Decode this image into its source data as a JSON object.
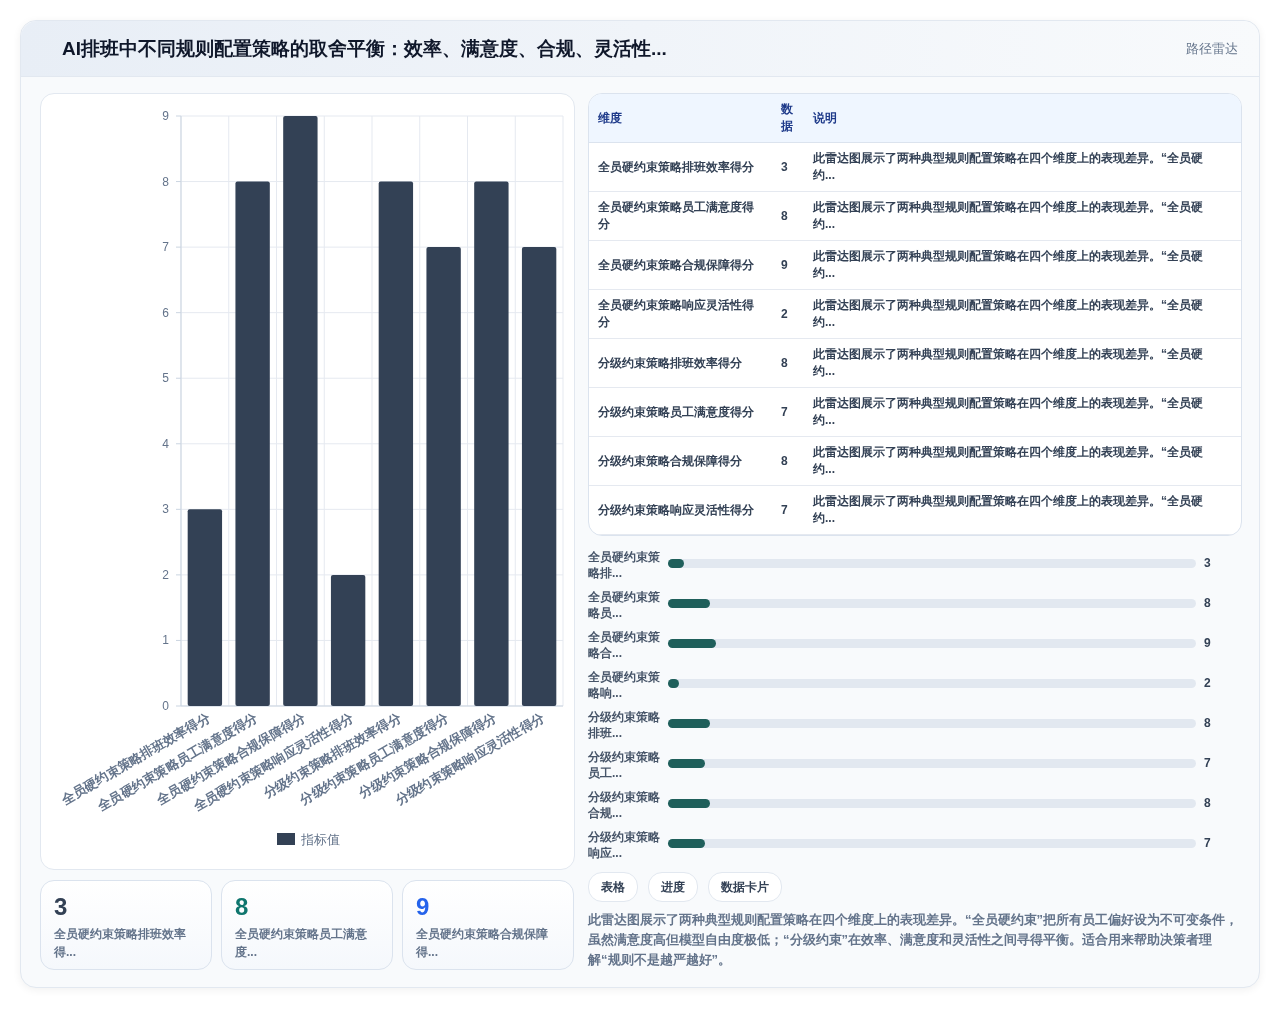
{
  "chart_data": [
    {
      "type": "other",
      "title": "AI排班中不同规则配置策略的取舍平衡：效率、满意度、合规、灵活性...",
      "subtitle": "路径雷达"
    },
    {
      "type": "bar",
      "categories": [
        "全员硬约束策略排班效率得分",
        "全员硬约束策略员工满意度得分",
        "全员硬约束策略合规保障得分",
        "全员硬约束策略响应灵活性得分",
        "分级约束策略排班效率得分",
        "分级约束策略员工满意度得分",
        "分级约束策略合规保障得分",
        "分级约束策略响应灵活性得分"
      ],
      "series": [
        {
          "name": "指标值",
          "color": "#334155",
          "values": [
            3,
            8,
            9,
            2,
            8,
            7,
            8,
            7
          ]
        }
      ],
      "ylim": [
        0,
        9
      ],
      "yticks": [
        0,
        1,
        2,
        3,
        4,
        5,
        6,
        7,
        8,
        9
      ],
      "grid": true,
      "legend": "bottom"
    },
    {
      "type": "other",
      "categories": [
        "全员硬约束策略排班效率得分",
        "全员硬约束策略员工满意度得分",
        "全员硬约束策略合规保障得分",
        "全员硬约束策略响应灵活性得分",
        "分级约束策略排班效率得分",
        "分级约束策略员工满意度得分",
        "分级约束策略合规保障得分",
        "分级约束策略响应灵活性得分"
      ],
      "values": [
        3,
        8,
        9,
        2,
        8,
        7,
        8,
        7
      ],
      "data_labels": true,
      "annotations": [
        "维度",
        "数据",
        "说明",
        "此雷达图展示了两种典型规则配置策略在四个维度上的表现差异。“全员硬约...",
        "此雷达图展示了两种典型规则配置策略在四个维度上的表现差异。“全员硬约...",
        "此雷达图展示了两种典型规则配置策略在四个维度上的表现差异。“全员硬约...",
        "此雷达图展示了两种典型规则配置策略在四个维度上的表现差异。“全员硬约...",
        "此雷达图展示了两种典型规则配置策略在四个维度上的表现差异。“全员硬约...",
        "此雷达图展示了两种典型规则配置策略在四个维度上的表现差异。“全员硬约...",
        "此雷达图展示了两种典型规则配置策略在四个维度上的表现差异。“全员硬约...",
        "此雷达图展示了两种典型规则配置策略在四个维度上的表现差异。“全员硬约..."
      ]
    },
    {
      "type": "bar",
      "orientation": "horizontal",
      "data_labels": true,
      "categories": [
        "全员硬约束策略排...",
        "全员硬约束策略员...",
        "全员硬约束策略合...",
        "全员硬约束策略响...",
        "分级约束策略排班...",
        "分级约束策略员工...",
        "分级约束策略合规...",
        "分级约束策略响应..."
      ],
      "values": [
        3,
        8,
        9,
        2,
        8,
        7,
        8,
        7
      ],
      "color": "#1f5f5b"
    },
    {
      "type": "other",
      "categories": [
        "全员硬约束策略排班效率得...",
        "全员硬约束策略员工满意度...",
        "全员硬约束策略合规保障得..."
      ],
      "values": [
        3,
        8,
        9
      ],
      "data_labels": true
    },
    {
      "type": "other",
      "annotations": [
        "表格",
        "进度",
        "数据卡片",
        "此雷达图展示了两种典型规则配置策略在四个维度上的表现差异。“全员硬约束”把所有员工偏好设为不可变条件，虽然满意度高但模型自由度极低；“分级约束”在效率、满意度和灵活性之间寻得平衡。适合用来帮助决策者理解“规则不是越严越好”。"
      ]
    }
  ]
}
